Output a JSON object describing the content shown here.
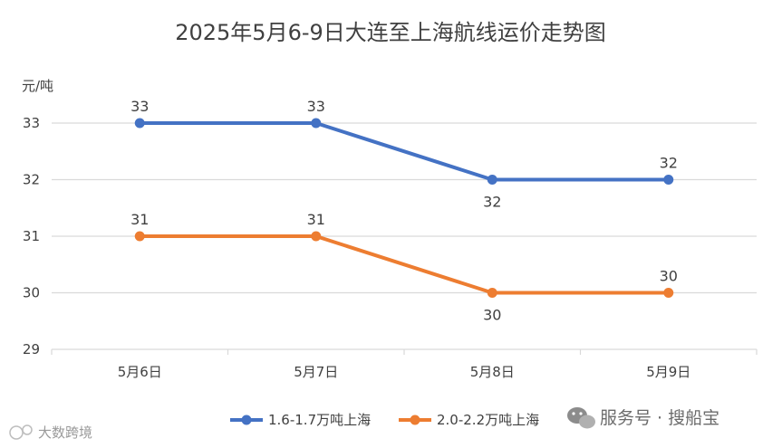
{
  "chart_data": {
    "type": "line",
    "title": "2025年5月6-9日大连至上海航线运价走势图",
    "ylabel": "元/吨",
    "xlabel": "",
    "categories": [
      "5月6日",
      "5月7日",
      "5月8日",
      "5月9日"
    ],
    "ylim": [
      29,
      33
    ],
    "yticks": [
      29,
      30,
      31,
      32,
      33
    ],
    "grid": true,
    "legend_position": "bottom",
    "series": [
      {
        "name": "1.6-1.7万吨上海",
        "values": [
          33,
          33,
          32,
          32
        ],
        "color": "#4472C4"
      },
      {
        "name": "2.0-2.2万吨上海",
        "values": [
          31,
          31,
          30,
          30
        ],
        "color": "#ED7D31"
      }
    ]
  },
  "watermark": {
    "left_text": "大数跨境",
    "right_text": "服务号 · 搜船宝"
  }
}
